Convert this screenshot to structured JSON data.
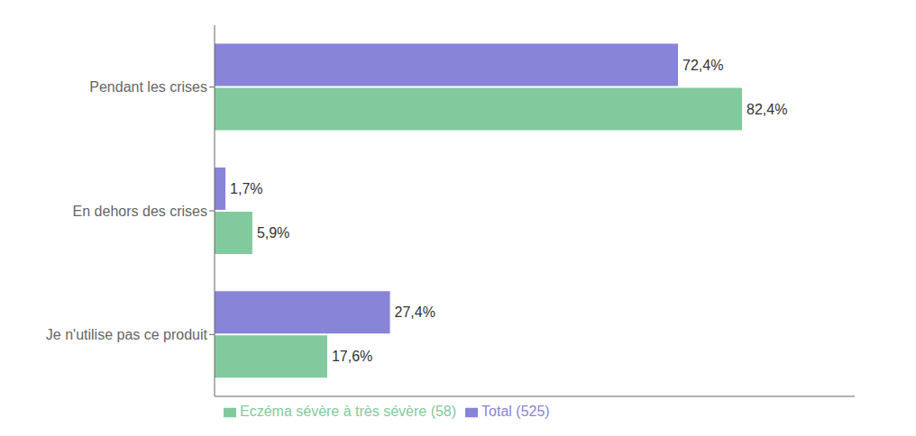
{
  "chart_data": {
    "type": "bar",
    "orientation": "horizontal",
    "categories": [
      "Pendant les crises",
      "En dehors des crises",
      "Je n'utilise pas ce produit"
    ],
    "series": [
      {
        "name": "Total (525)",
        "values": [
          72.4,
          1.7,
          27.4
        ],
        "value_labels": [
          "72,4%",
          "1,7%",
          "27,4%"
        ]
      },
      {
        "name": "Eczéma sévère à très sévère (58)",
        "values": [
          82.4,
          5.9,
          17.6
        ],
        "value_labels": [
          "82,4%",
          "5,9%",
          "17,6%"
        ]
      }
    ],
    "xlim": [
      0,
      100
    ],
    "xticks": [],
    "grid": false,
    "legend": "bottom",
    "data_labels": true,
    "tick_labels": "y"
  }
}
